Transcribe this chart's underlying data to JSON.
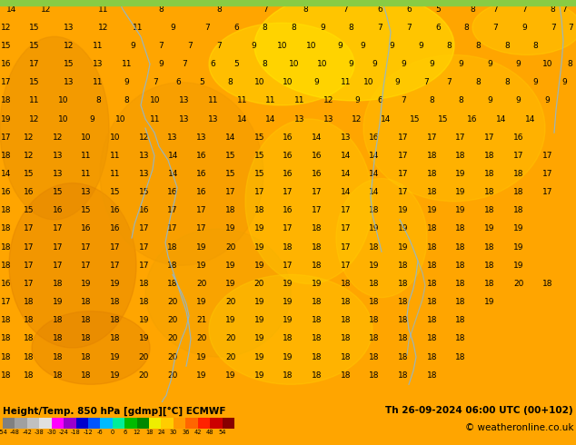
{
  "title_left": "Height/Temp. 850 hPa [gdmp][°C] ECMWF",
  "title_right": "Th 26-09-2024 06:00 UTC (00+102)",
  "copyright": "© weatheronline.co.uk",
  "map_bg_dark": "#E08000",
  "map_bg_mid": "#FFA500",
  "map_bg_light": "#FFD700",
  "map_bg_yellow": "#FFEE00",
  "contour_color": "#8BB8D8",
  "colorbar_colors": [
    "#808080",
    "#a0a0a0",
    "#c0c0c0",
    "#e0e0e0",
    "#ff00ff",
    "#9900cc",
    "#0000cc",
    "#0055ff",
    "#00bbff",
    "#00ee99",
    "#00bb00",
    "#008800",
    "#eeee00",
    "#ffcc00",
    "#ff9900",
    "#ff6600",
    "#ff2200",
    "#cc0000",
    "#880000"
  ],
  "colorbar_labels": [
    "-54",
    "-48",
    "-42",
    "-38",
    "-30",
    "-24",
    "-18",
    "-12",
    "-6",
    "0",
    "6",
    "12",
    "18",
    "24",
    "30",
    "36",
    "42",
    "48",
    "54"
  ],
  "bottom_bg": "#FFA500",
  "figsize": [
    6.34,
    4.9
  ],
  "dpi": 100,
  "numbers": [
    [
      "14",
      "12",
      "",
      "11",
      "",
      "8",
      "",
      "",
      "",
      "8",
      "",
      "8",
      "7",
      "",
      "6",
      "6",
      "",
      "",
      "5",
      "",
      "",
      "",
      "8",
      "7",
      "",
      "7",
      "",
      "8",
      "7",
      "",
      "6",
      ""
    ],
    [
      "12",
      "",
      "13",
      "",
      "12",
      "",
      "11",
      "",
      "9",
      "",
      "7",
      "",
      "6",
      "",
      "8",
      "8",
      "",
      "9",
      "8",
      "",
      "7",
      "7",
      "",
      "6",
      "",
      "8",
      "7",
      "",
      "9",
      "7",
      "7"
    ],
    [
      "15",
      "",
      "12",
      "",
      "11",
      "",
      "9",
      "",
      "7",
      "",
      "7",
      "7",
      "",
      "9",
      "10",
      "10",
      "",
      "9",
      "",
      "9",
      "",
      "9",
      "",
      "9",
      "",
      "8",
      "8",
      "",
      "8",
      "",
      "8"
    ],
    [
      "16",
      "",
      "15",
      "",
      "13",
      "",
      "11",
      "",
      "9",
      "",
      "7",
      "6",
      "5",
      "",
      "8",
      "10",
      "10",
      "",
      "9",
      "",
      "9",
      "",
      "9",
      "",
      "9",
      "",
      "9",
      "",
      "10",
      "",
      "8"
    ],
    [
      "17",
      "",
      "15",
      "",
      "13",
      "",
      "11",
      "",
      "7",
      "",
      "6",
      "5",
      "",
      "8",
      "10",
      "10",
      "",
      "9",
      "11",
      "10",
      "",
      "9",
      "7",
      "7",
      "",
      "8",
      "8",
      "",
      "9",
      "",
      "9"
    ],
    [
      "18",
      "",
      "11",
      "",
      "10",
      "",
      "8",
      "",
      "8",
      "",
      "10",
      "13",
      "",
      "11",
      "11",
      "11",
      "11",
      "",
      "12",
      "",
      "9",
      "6",
      "",
      "7",
      "8",
      "8",
      "",
      "9",
      "",
      "9"
    ],
    [
      "19",
      "",
      "12",
      "",
      "10",
      "",
      "9",
      "",
      "10",
      "",
      "11",
      "13",
      "13",
      "14",
      "",
      "14",
      "13",
      "13",
      "",
      "12",
      "",
      "14",
      "15",
      "",
      "15",
      "16",
      "",
      "14",
      "",
      "14"
    ],
    [
      "17",
      "12",
      "",
      "12",
      "",
      "10",
      "12",
      "",
      "13",
      "13",
      "14",
      "15",
      "15",
      "",
      "16",
      "14",
      "",
      "13",
      "",
      "16",
      "17",
      "17",
      "",
      "17",
      "17",
      "",
      "17",
      "",
      "16"
    ],
    [
      "18",
      "",
      "12",
      "",
      "10",
      "",
      "10",
      "12",
      "",
      "13",
      "14",
      "16",
      "15",
      "15",
      "16",
      "16",
      "14",
      "",
      "14",
      "",
      "17",
      "18",
      "",
      "18",
      "17",
      "",
      "17",
      "17"
    ],
    [
      "14",
      "",
      "15",
      "13",
      "",
      "11",
      "",
      "11",
      "",
      "13",
      "14",
      "16",
      "15",
      "",
      "15",
      "16",
      "14",
      "",
      "14",
      "",
      "17",
      "18",
      "19",
      "",
      "18",
      "18",
      "",
      "17",
      "17"
    ],
    [
      "16",
      "16",
      "",
      "15",
      "",
      "13",
      "",
      "15",
      "15",
      "",
      "16",
      "16",
      "17",
      "17",
      "",
      "17",
      "17",
      "",
      "14",
      "14",
      "",
      "17",
      "18",
      "",
      "19",
      "18",
      "",
      "18",
      "17"
    ],
    [
      "18",
      "",
      "15",
      "",
      "16",
      "",
      "15",
      "",
      "16",
      "",
      "17",
      "17",
      "18",
      "18",
      "",
      "16",
      "17",
      "17",
      "",
      "18",
      "",
      "19",
      "",
      "19",
      "19",
      "",
      "18",
      "",
      "18"
    ],
    [
      "18",
      "17",
      "",
      "17",
      "",
      "16",
      "",
      "16",
      "",
      "17",
      "17",
      "",
      "17",
      "19",
      "19",
      "17",
      "",
      "18",
      "17",
      "",
      "19",
      "19",
      "",
      "18",
      "18",
      "",
      "19",
      "19"
    ],
    [
      "18",
      "",
      "17",
      "",
      "17",
      "",
      "17",
      "",
      "17",
      "",
      "18",
      "19",
      "20",
      "19",
      "",
      "18",
      "18",
      "17",
      "",
      "18",
      "",
      "19",
      "18",
      "",
      "18",
      "18",
      "",
      "19"
    ],
    [
      "18",
      "17",
      "",
      "17",
      "",
      "17",
      "",
      "17",
      "",
      "17",
      "18",
      "19",
      "",
      "19",
      "18",
      "18",
      "17",
      "",
      "18",
      "",
      "19",
      "18",
      "18",
      "",
      "18",
      "",
      "18",
      "19"
    ],
    [
      "16",
      "17",
      "",
      "18",
      "",
      "19",
      "",
      "19",
      "",
      "18",
      "20",
      "",
      "19",
      "",
      "20",
      "19",
      "19",
      "18",
      "",
      "18",
      "18",
      "",
      "20",
      "18",
      "18",
      "",
      "18",
      "19"
    ],
    [
      "17",
      "18",
      "",
      "19",
      "",
      "18",
      "",
      "18",
      "",
      "18",
      "20",
      "20",
      "19",
      "20",
      "",
      "19",
      "18",
      "18",
      "18",
      "",
      "18",
      "",
      "18",
      "",
      "18",
      "19"
    ],
    [
      "18",
      "18",
      "",
      "18",
      "",
      "18",
      "",
      "19",
      "",
      "20",
      "",
      "20",
      "",
      "21",
      "19",
      "19",
      "19",
      "",
      "18",
      "18",
      "18",
      "",
      "18",
      "18",
      "",
      "18",
      "18"
    ],
    [
      "18",
      "18",
      "18",
      "",
      "18",
      "",
      "19",
      "",
      "20",
      "20",
      "",
      "19",
      "20",
      "",
      "19",
      "19",
      "",
      "18",
      "",
      "18",
      "",
      "18",
      "18",
      "18",
      "",
      "18",
      "18"
    ]
  ]
}
